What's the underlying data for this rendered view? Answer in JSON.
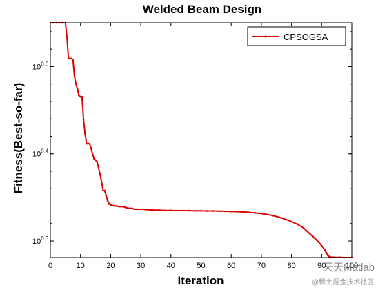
{
  "chart_data": {
    "type": "line",
    "title": "Welded Beam Design",
    "xlabel": "Iteration",
    "ylabel": "Fitness(Best-so-far)",
    "xlim": [
      0,
      100
    ],
    "ylim": [
      1.91,
      3.55
    ],
    "yscale": "log",
    "grid": false,
    "legend_position": "top-right",
    "x_ticks": [
      0,
      10,
      20,
      30,
      40,
      50,
      60,
      70,
      80,
      90,
      100
    ],
    "y_ticks": [
      {
        "base": "10",
        "exp": "0.3",
        "value": 1.9953
      },
      {
        "base": "10",
        "exp": "0.4",
        "value": 2.5119
      },
      {
        "base": "10",
        "exp": "0.5",
        "value": 3.1623
      }
    ],
    "series": [
      {
        "name": "CPSOGSA",
        "color": "#e00000",
        "marker": "dot",
        "x": [
          0,
          1,
          2,
          3,
          4,
          5,
          5.5,
          6,
          6.5,
          7,
          7.5,
          8,
          8.5,
          9,
          9.5,
          10,
          10.5,
          11,
          11.5,
          12,
          12.5,
          13,
          13.5,
          14,
          14.5,
          15,
          15.5,
          16,
          16.5,
          17,
          17.5,
          18,
          18.5,
          19,
          19.5,
          20,
          21,
          22,
          23,
          24,
          25,
          26,
          27,
          28,
          29,
          30,
          32,
          34,
          36,
          38,
          40,
          42,
          44,
          46,
          48,
          50,
          52,
          54,
          56,
          58,
          60,
          62,
          64,
          66,
          68,
          70,
          72,
          74,
          76,
          78,
          80,
          82,
          84,
          85,
          86,
          87,
          88,
          89,
          90,
          91,
          91.5,
          92,
          92.5,
          93,
          94,
          96,
          98,
          100
        ],
        "values": [
          3.55,
          3.55,
          3.55,
          3.55,
          3.55,
          3.55,
          3.42,
          3.23,
          3.23,
          3.23,
          3.22,
          3.08,
          3.02,
          2.98,
          2.93,
          2.92,
          2.92,
          2.75,
          2.65,
          2.58,
          2.58,
          2.58,
          2.55,
          2.51,
          2.48,
          2.47,
          2.46,
          2.42,
          2.38,
          2.33,
          2.28,
          2.28,
          2.25,
          2.22,
          2.2,
          2.195,
          2.19,
          2.188,
          2.185,
          2.185,
          2.18,
          2.175,
          2.175,
          2.17,
          2.17,
          2.17,
          2.168,
          2.165,
          2.165,
          2.163,
          2.163,
          2.162,
          2.162,
          2.162,
          2.161,
          2.161,
          2.16,
          2.16,
          2.159,
          2.158,
          2.157,
          2.156,
          2.154,
          2.152,
          2.149,
          2.145,
          2.14,
          2.133,
          2.124,
          2.113,
          2.1,
          2.085,
          2.065,
          2.05,
          2.035,
          2.02,
          2.005,
          1.99,
          1.97,
          1.95,
          1.935,
          1.922,
          1.915,
          1.912,
          1.911,
          1.911,
          1.91,
          1.91
        ]
      }
    ]
  },
  "watermark": {
    "line1": "天天Matlab",
    "line2": "@稀土掘金技术社区"
  }
}
